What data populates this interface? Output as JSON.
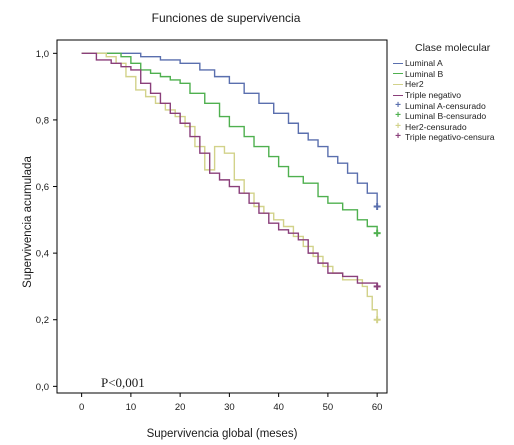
{
  "chart_data": {
    "type": "line",
    "title": "Funciones de supervivencia",
    "xlabel": "Supervivencia global (meses)",
    "ylabel": "Supervivencia acumulada",
    "xlim": [
      -5,
      62
    ],
    "ylim": [
      -0.02,
      1.04
    ],
    "x_ticks": [
      0,
      10,
      20,
      30,
      40,
      50,
      60
    ],
    "y_ticks": [
      0.0,
      0.2,
      0.4,
      0.6,
      0.8,
      1.0
    ],
    "y_tick_labels": [
      "0,0",
      "0,2",
      "0,4",
      "0,6",
      "0,8",
      "1,0"
    ],
    "annotation": "P<0,001",
    "legend_title": "Clase molecular",
    "legend_entries": [
      "Luminal A",
      "Luminal B",
      "Her2",
      "Triple negativo",
      "Luminal A-censurado",
      "Luminal B-censurado",
      "Her2-censurado",
      "Triple negativo-censura"
    ],
    "series": [
      {
        "name": "Luminal A",
        "color": "#5a6fae",
        "points": [
          [
            0,
            1.0
          ],
          [
            9,
            1.0
          ],
          [
            12,
            0.99
          ],
          [
            16,
            0.98
          ],
          [
            20,
            0.97
          ],
          [
            24,
            0.95
          ],
          [
            27,
            0.93
          ],
          [
            30,
            0.91
          ],
          [
            33,
            0.88
          ],
          [
            36,
            0.85
          ],
          [
            39,
            0.82
          ],
          [
            42,
            0.79
          ],
          [
            44,
            0.76
          ],
          [
            46,
            0.74
          ],
          [
            48,
            0.72
          ],
          [
            50,
            0.69
          ],
          [
            52,
            0.67
          ],
          [
            54,
            0.64
          ],
          [
            56,
            0.61
          ],
          [
            58,
            0.58
          ],
          [
            60,
            0.54
          ]
        ],
        "censor": [
          60,
          0.54
        ]
      },
      {
        "name": "Luminal B",
        "color": "#4fb04f",
        "points": [
          [
            0,
            1.0
          ],
          [
            8,
            0.99
          ],
          [
            10,
            0.97
          ],
          [
            12,
            0.95
          ],
          [
            14,
            0.94
          ],
          [
            16,
            0.93
          ],
          [
            18,
            0.92
          ],
          [
            20,
            0.91
          ],
          [
            22,
            0.88
          ],
          [
            25,
            0.85
          ],
          [
            28,
            0.81
          ],
          [
            30,
            0.78
          ],
          [
            33,
            0.75
          ],
          [
            35,
            0.72
          ],
          [
            38,
            0.69
          ],
          [
            40,
            0.66
          ],
          [
            42,
            0.63
          ],
          [
            45,
            0.61
          ],
          [
            48,
            0.57
          ],
          [
            50,
            0.55
          ],
          [
            53,
            0.53
          ],
          [
            56,
            0.5
          ],
          [
            58,
            0.48
          ],
          [
            60,
            0.46
          ]
        ],
        "censor": [
          60,
          0.46
        ]
      },
      {
        "name": "Her2",
        "color": "#d2d28a",
        "points": [
          [
            0,
            1.0
          ],
          [
            5,
            0.99
          ],
          [
            7,
            0.97
          ],
          [
            9,
            0.93
          ],
          [
            11,
            0.89
          ],
          [
            13,
            0.87
          ],
          [
            15,
            0.85
          ],
          [
            17,
            0.83
          ],
          [
            19,
            0.81
          ],
          [
            21,
            0.78
          ],
          [
            23,
            0.72
          ],
          [
            25,
            0.65
          ],
          [
            27,
            0.72
          ],
          [
            29,
            0.7
          ],
          [
            31,
            0.62
          ],
          [
            33,
            0.58
          ],
          [
            35,
            0.54
          ],
          [
            37,
            0.52
          ],
          [
            39,
            0.5
          ],
          [
            41,
            0.48
          ],
          [
            43,
            0.45
          ],
          [
            45,
            0.42
          ],
          [
            47,
            0.39
          ],
          [
            49,
            0.36
          ],
          [
            51,
            0.34
          ],
          [
            53,
            0.32
          ],
          [
            55,
            0.32
          ],
          [
            57,
            0.3
          ],
          [
            58,
            0.27
          ],
          [
            59,
            0.23
          ],
          [
            60,
            0.2
          ]
        ],
        "censor": [
          60,
          0.2
        ]
      },
      {
        "name": "Triple negativo",
        "color": "#8a3f7a",
        "points": [
          [
            0,
            1.0
          ],
          [
            3,
            0.98
          ],
          [
            6,
            0.97
          ],
          [
            8,
            0.96
          ],
          [
            10,
            0.95
          ],
          [
            12,
            0.91
          ],
          [
            14,
            0.88
          ],
          [
            16,
            0.85
          ],
          [
            18,
            0.82
          ],
          [
            20,
            0.79
          ],
          [
            22,
            0.75
          ],
          [
            24,
            0.7
          ],
          [
            26,
            0.64
          ],
          [
            28,
            0.62
          ],
          [
            30,
            0.6
          ],
          [
            32,
            0.58
          ],
          [
            34,
            0.55
          ],
          [
            36,
            0.52
          ],
          [
            38,
            0.49
          ],
          [
            40,
            0.47
          ],
          [
            42,
            0.46
          ],
          [
            44,
            0.44
          ],
          [
            46,
            0.4
          ],
          [
            48,
            0.37
          ],
          [
            50,
            0.34
          ],
          [
            53,
            0.33
          ],
          [
            56,
            0.31
          ],
          [
            60,
            0.3
          ]
        ],
        "censor": [
          60,
          0.3
        ]
      }
    ]
  }
}
